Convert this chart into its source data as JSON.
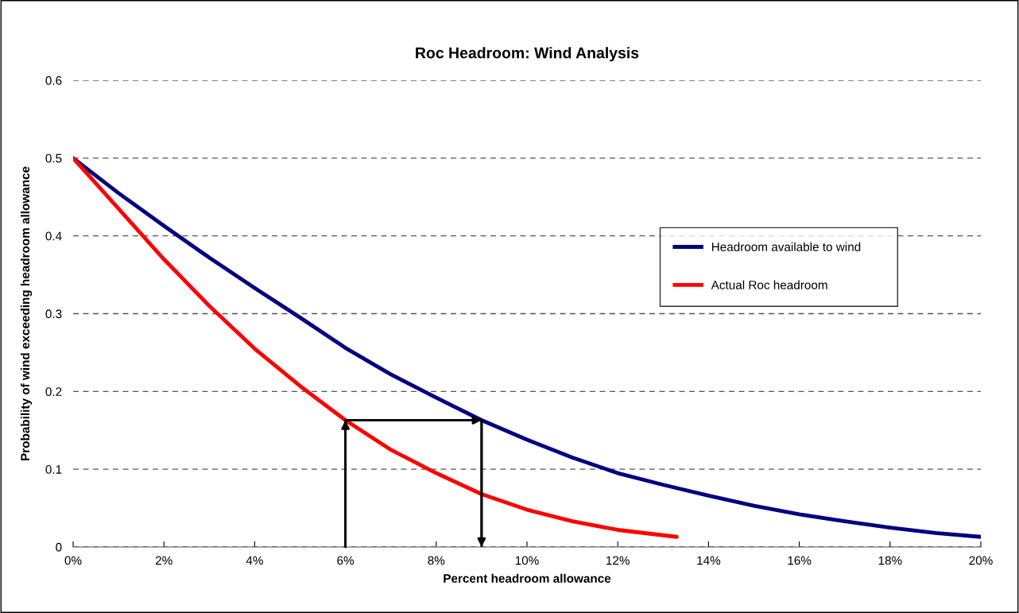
{
  "chart_data": {
    "type": "line",
    "title": "Roc Headroom: Wind Analysis",
    "xlabel": "Percent headroom allowance",
    "ylabel": "Probability of wind exceeding headroom allowance",
    "series": [
      {
        "name": "Headroom available to wind",
        "color": "#000080",
        "x": [
          0,
          1,
          2,
          3,
          4,
          5,
          6,
          7,
          8,
          9,
          10,
          11,
          12,
          13,
          14,
          15,
          16,
          17,
          18,
          19,
          20
        ],
        "values": [
          0.5,
          0.455,
          0.413,
          0.372,
          0.333,
          0.295,
          0.256,
          0.222,
          0.192,
          0.163,
          0.138,
          0.115,
          0.095,
          0.08,
          0.066,
          0.053,
          0.042,
          0.033,
          0.025,
          0.018,
          0.013
        ]
      },
      {
        "name": "Actual Roc headroom",
        "color": "#ff0000",
        "x": [
          0,
          1,
          2,
          3,
          4,
          5,
          6,
          7,
          8,
          9,
          10,
          11,
          12,
          13.3
        ],
        "values": [
          0.5,
          0.435,
          0.37,
          0.31,
          0.255,
          0.207,
          0.163,
          0.125,
          0.095,
          0.068,
          0.048,
          0.033,
          0.022,
          0.013
        ]
      },
      {
        "type": "line",
        "color": "#000000",
        "x": [
          6,
          6,
          9,
          9
        ],
        "values": [
          0,
          0.163,
          0.163,
          0
        ]
      }
    ],
    "xlim": [
      0,
      20
    ],
    "ylim": [
      0,
      0.6
    ],
    "xticks": [
      {
        "value": 0,
        "label": "0%"
      },
      {
        "value": 2,
        "label": "2%"
      },
      {
        "value": 4,
        "label": "4%"
      },
      {
        "value": 6,
        "label": "6%"
      },
      {
        "value": 8,
        "label": "8%"
      },
      {
        "value": 10,
        "label": "10%"
      },
      {
        "value": 12,
        "label": "12%"
      },
      {
        "value": 14,
        "label": "14%"
      },
      {
        "value": 16,
        "label": "16%"
      },
      {
        "value": 18,
        "label": "18%"
      },
      {
        "value": 20,
        "label": "20%"
      }
    ],
    "yticks": [
      0,
      0.1,
      0.2,
      0.3,
      0.4,
      0.5,
      0.6
    ],
    "grid": "y",
    "legend": "right",
    "marker": "none",
    "line_style": "solid"
  }
}
